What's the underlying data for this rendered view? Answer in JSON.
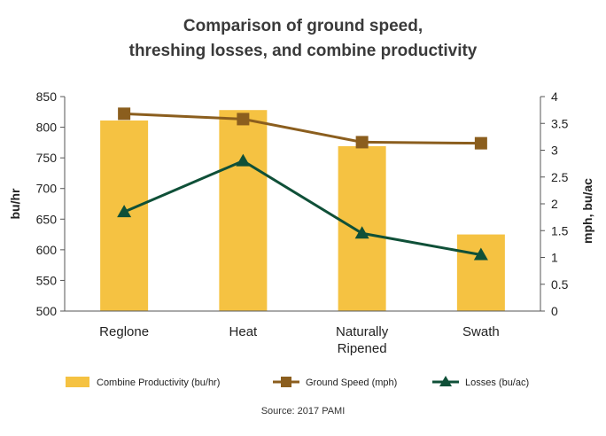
{
  "chart_data": {
    "type": "bar",
    "title_lines": [
      "Comparison of ground speed,",
      "threshing losses, and combine productivity"
    ],
    "categories": [
      [
        "Reglone"
      ],
      [
        "Heat"
      ],
      [
        "Naturally",
        "Ripened"
      ],
      [
        "Swath"
      ]
    ],
    "ylabel_left": "bu/hr",
    "ylabel_right": "mph, bu/ac",
    "ylim_left": [
      500,
      850
    ],
    "yticks_left": [
      "500",
      "550",
      "600",
      "650",
      "700",
      "750",
      "800",
      "850"
    ],
    "ylim_right": [
      0,
      4
    ],
    "yticks_right": [
      "0",
      "0.5",
      "1",
      "1.5",
      "2",
      "2.5",
      "3",
      "3.5",
      "4"
    ],
    "series": [
      {
        "name": "Combine Productivity (bu/hr)",
        "kind": "bar",
        "axis": "left",
        "color": "#F5C242",
        "values": [
          811,
          828,
          769,
          625
        ]
      },
      {
        "name": "Ground Speed (mph)",
        "kind": "line",
        "marker": "square",
        "axis": "right",
        "color": "#8B5E1E",
        "values": [
          3.68,
          3.58,
          3.15,
          3.13
        ]
      },
      {
        "name": "Losses (bu/ac)",
        "kind": "line",
        "marker": "triangle",
        "axis": "right",
        "color": "#0F5038",
        "values": [
          1.85,
          2.8,
          1.45,
          1.05
        ]
      }
    ],
    "legend_position": "bottom",
    "grid": false
  },
  "source": "Source: 2017 PAMI"
}
